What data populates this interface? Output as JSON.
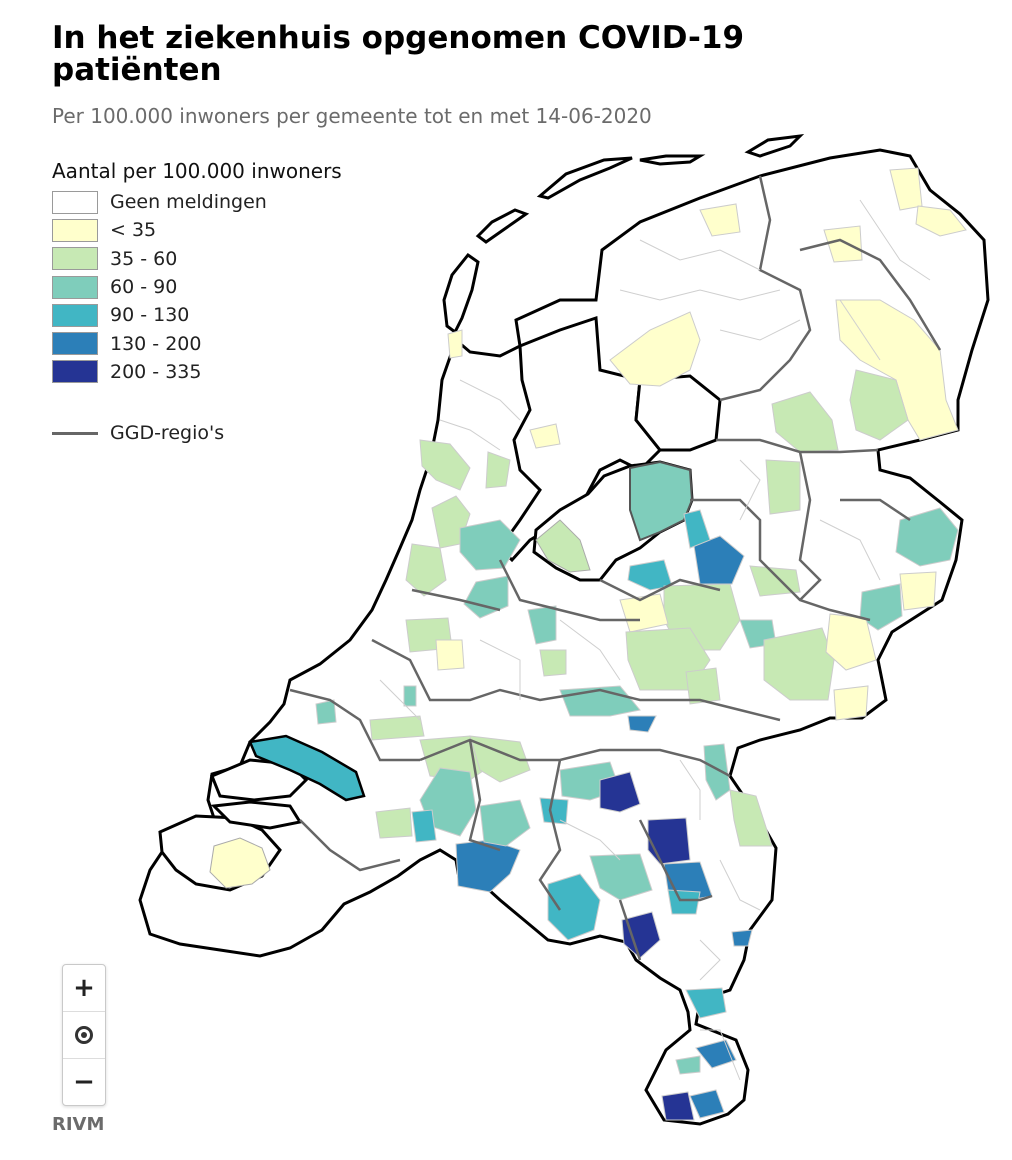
{
  "header": {
    "title": "In het ziekenhuis opgenomen COVID-19 patiënten",
    "subtitle": "Per 100.000 inwoners per gemeente tot en met 14-06-2020"
  },
  "legend": {
    "title": "Aantal per 100.000 inwoners",
    "classes": [
      {
        "label": "Geen meldingen",
        "color": "#ffffff"
      },
      {
        "label": "< 35",
        "color": "#ffffcc"
      },
      {
        "label": "35 - 60",
        "color": "#c7e9b4"
      },
      {
        "label": "60 - 90",
        "color": "#7fcdbb"
      },
      {
        "label": "90 - 130",
        "color": "#41b6c4"
      },
      {
        "label": "130 - 200",
        "color": "#2c7fb8"
      },
      {
        "label": "200 - 335",
        "color": "#253494"
      }
    ],
    "ggd_label": "GGD-regio's"
  },
  "controls": {
    "zoom_in": "+",
    "zoom_out": "−"
  },
  "credit": "RIVM"
}
